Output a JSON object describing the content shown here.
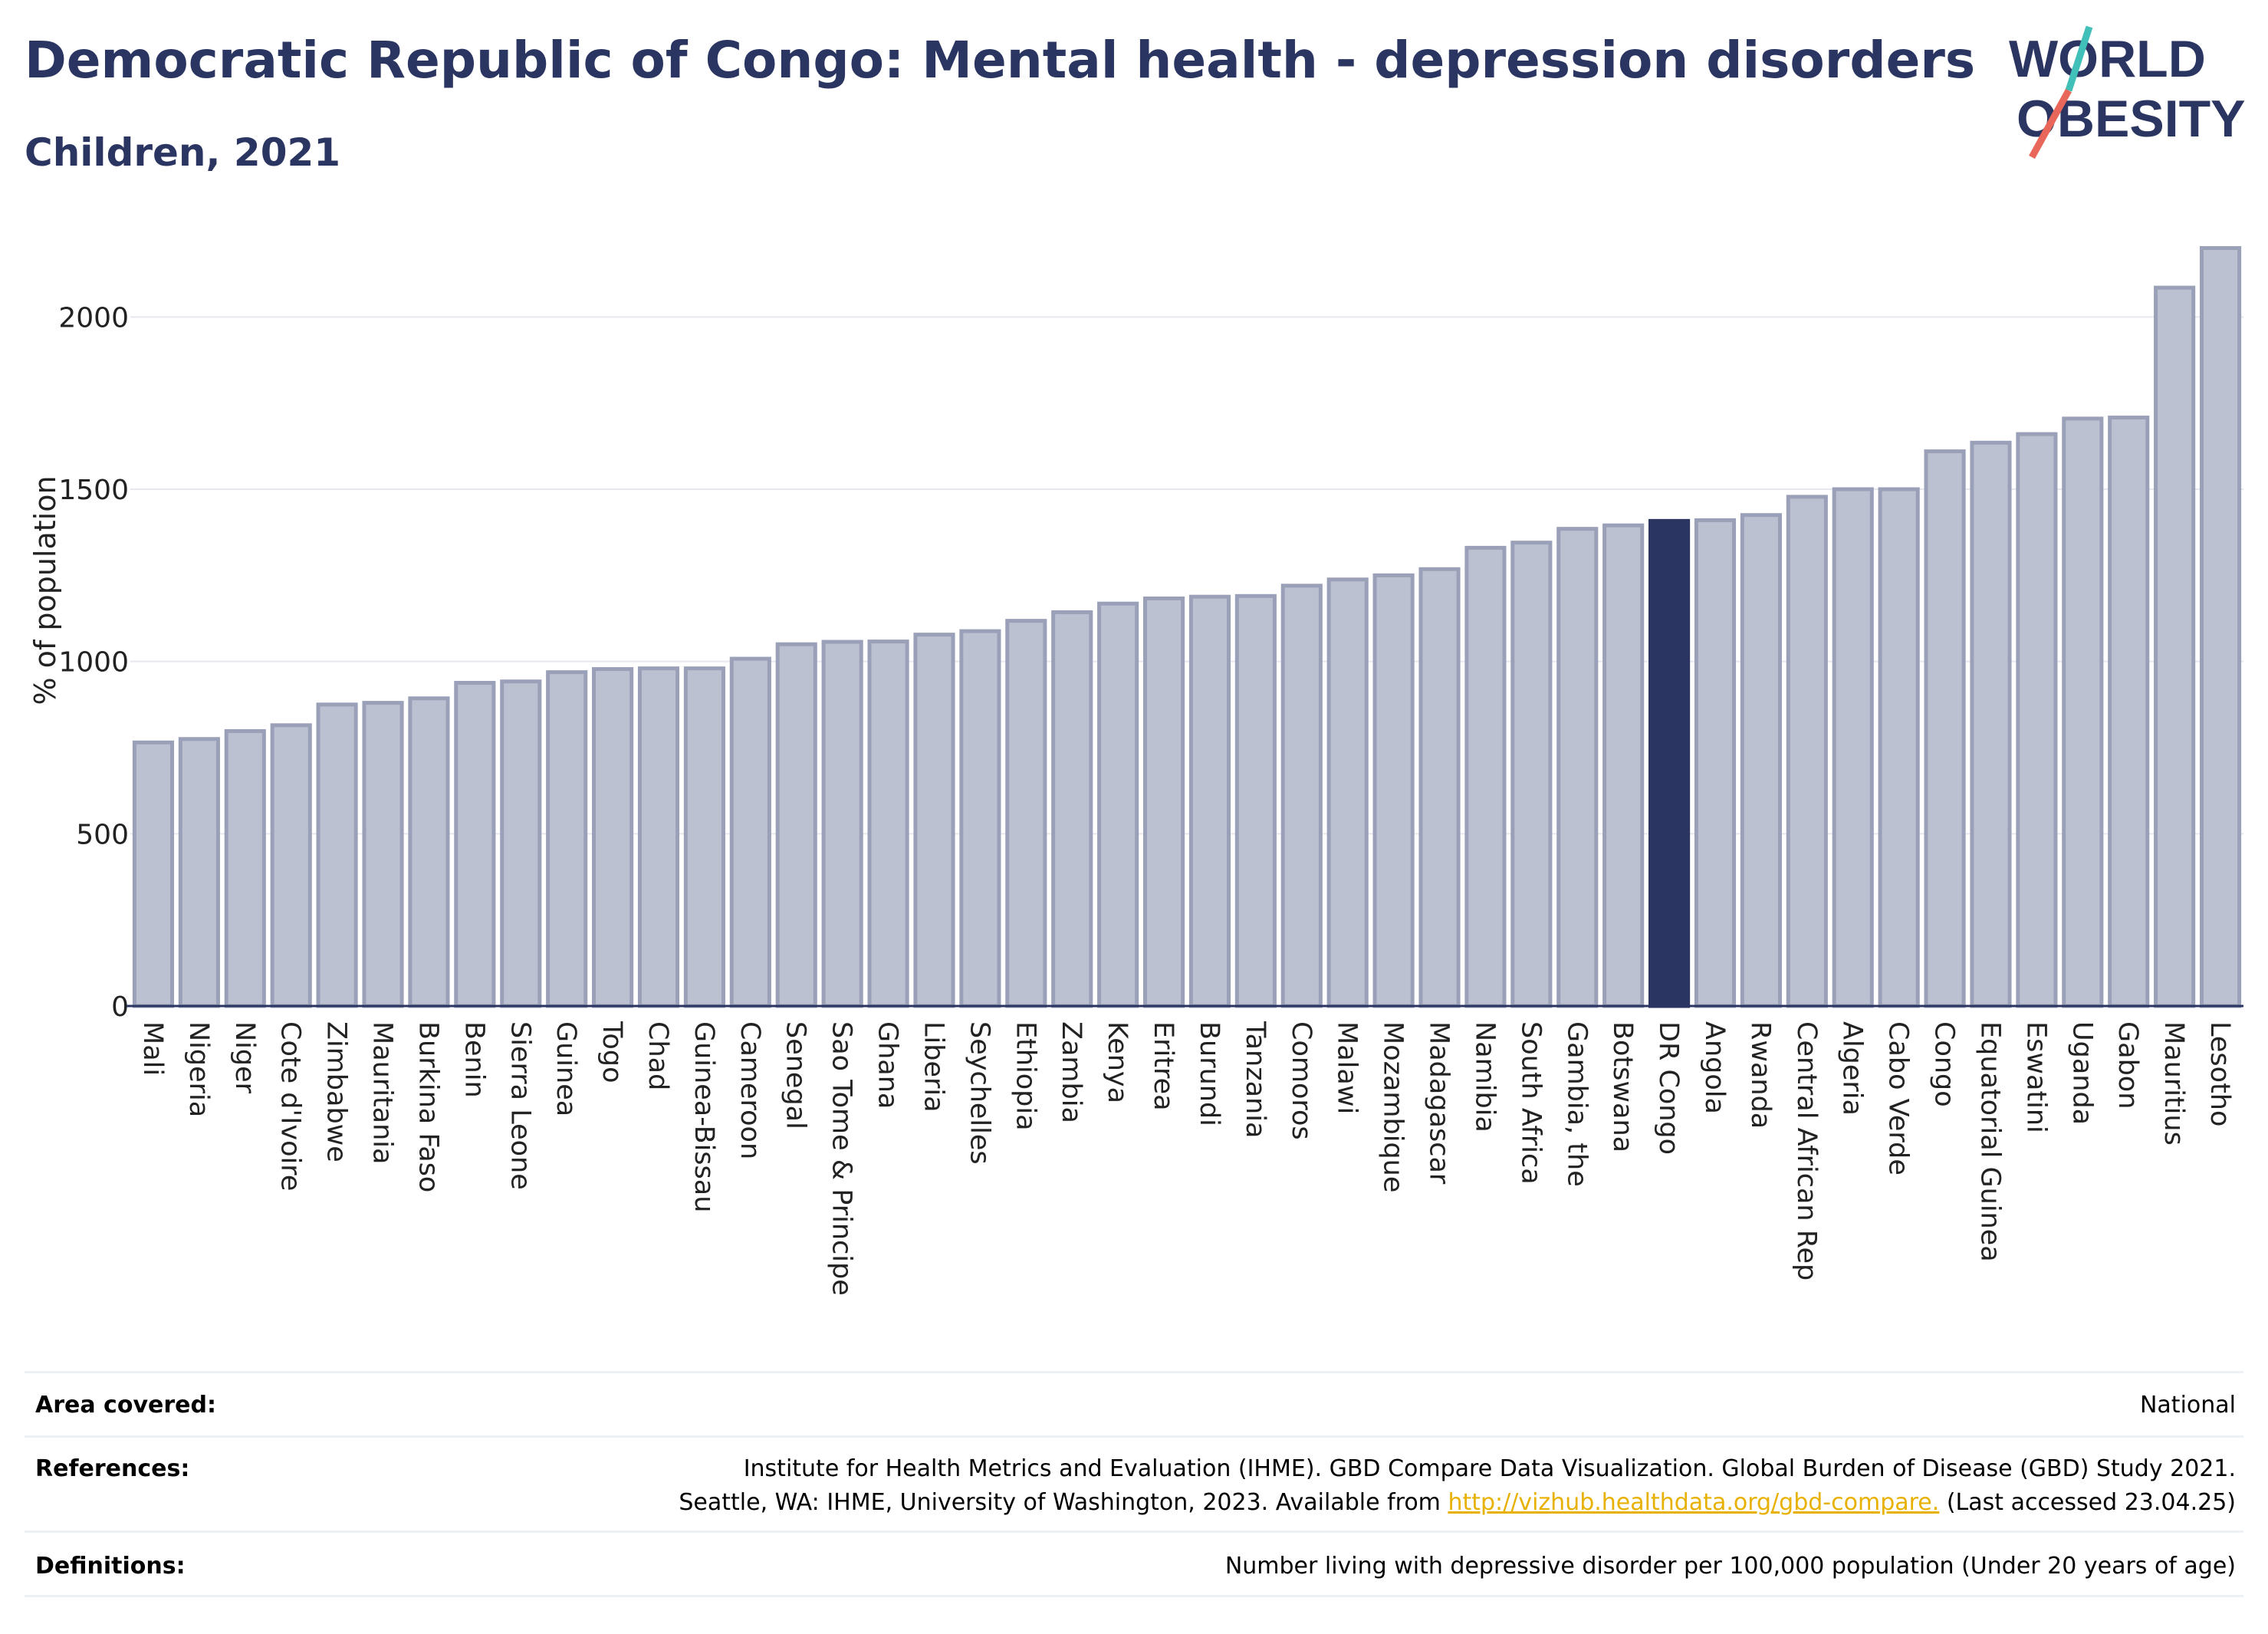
{
  "header": {
    "title": "Democratic Republic of Congo: Mental health - depression disorders",
    "subtitle": "Children, 2021"
  },
  "logo": {
    "line1": "WORLD",
    "line2": "OBESITY",
    "text_color": "#2b3561",
    "slash_colors": [
      "#40c0b8",
      "#e8675a"
    ]
  },
  "chart_data": {
    "type": "bar",
    "title": "Democratic Republic of Congo: Mental health - depression disorders",
    "subtitle": "Children, 2021",
    "xlabel": "",
    "ylabel": "% of population",
    "ylim": [
      0,
      2230
    ],
    "yticks": [
      0,
      500,
      1000,
      1500,
      2000
    ],
    "grid": true,
    "highlight": "DR Congo",
    "colors": {
      "bar": "#bcc1d1",
      "bar_border": "#9aa0b8",
      "highlight": "#2b3561"
    },
    "categories": [
      "Mali",
      "Nigeria",
      "Niger",
      "Cote d'Ivoire",
      "Zimbabwe",
      "Mauritania",
      "Burkina Faso",
      "Benin",
      "Sierra Leone",
      "Guinea",
      "Togo",
      "Chad",
      "Guinea-Bissau",
      "Cameroon",
      "Senegal",
      "Sao Tome & Principe",
      "Ghana",
      "Liberia",
      "Seychelles",
      "Ethiopia",
      "Zambia",
      "Kenya",
      "Eritrea",
      "Burundi",
      "Tanzania",
      "Comoros",
      "Malawi",
      "Mozambique",
      "Madagascar",
      "Namibia",
      "South Africa",
      "Gambia, the",
      "Botswana",
      "DR Congo",
      "Angola",
      "Rwanda",
      "Central African Rep",
      "Algeria",
      "Cabo Verde",
      "Congo",
      "Equatorial Guinea",
      "Eswatini",
      "Uganda",
      "Gabon",
      "Mauritius",
      "Lesotho"
    ],
    "values": [
      765,
      775,
      798,
      815,
      875,
      880,
      893,
      938,
      942,
      969,
      978,
      980,
      980,
      1008,
      1050,
      1057,
      1058,
      1078,
      1088,
      1118,
      1143,
      1168,
      1183,
      1188,
      1190,
      1220,
      1238,
      1250,
      1268,
      1330,
      1345,
      1385,
      1395,
      1408,
      1410,
      1425,
      1478,
      1500,
      1500,
      1610,
      1635,
      1660,
      1705,
      1708,
      2085,
      2200
    ]
  },
  "footer": {
    "area_label": "Area covered:",
    "area_value": "National",
    "references_label": "References:",
    "references_line1": "Institute for Health Metrics and Evaluation (IHME). GBD Compare Data Visualization. Global Burden of Disease (GBD) Study 2021.",
    "references_line2_prefix": "Seattle, WA: IHME, University of Washington, 2023. Available from ",
    "references_link": "http://vizhub.healthdata.org/gbd-compare.",
    "references_line2_suffix": " (Last accessed 23.04.25)",
    "definitions_label": "Definitions:",
    "definitions_value": "Number living with depressive disorder per 100,000 population (Under 20 years of age)"
  }
}
